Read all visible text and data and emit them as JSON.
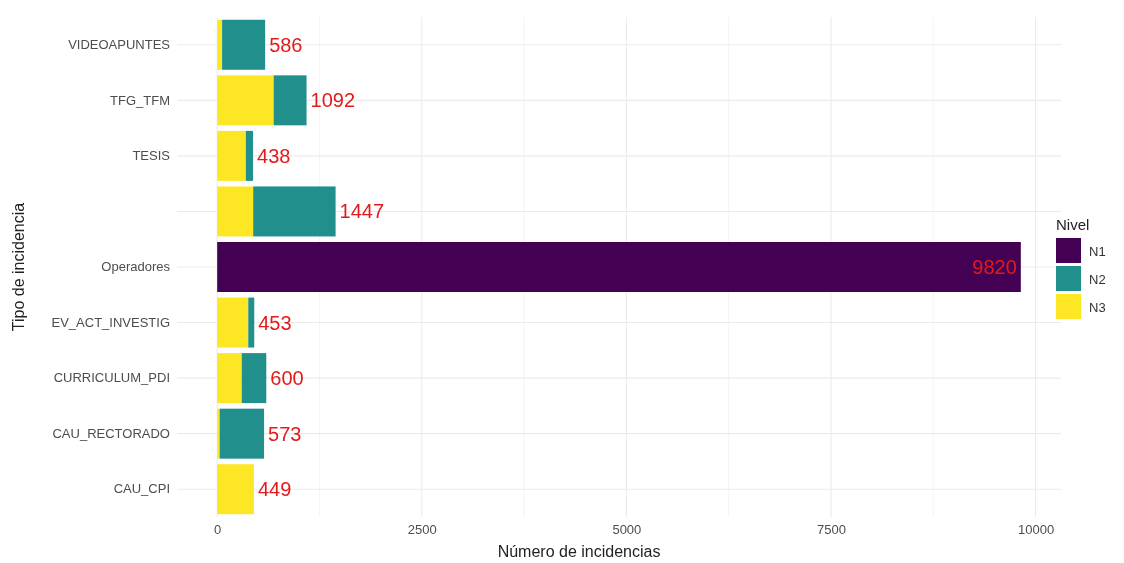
{
  "chart_data": {
    "type": "bar",
    "orientation": "horizontal",
    "stacked": true,
    "xlabel": "Número de incidencias",
    "ylabel": "Tipo de incidencia",
    "legend_title": "Nivel",
    "legend": "right",
    "grid": true,
    "categories": [
      "VIDEOAPUNTES",
      "TFG_TFM",
      "TESIS",
      null,
      "Operadores",
      "EV_ACT_INVESTIG",
      "CURRICULUM_PDI",
      "CAU_RECTORADO",
      "CAU_CPI"
    ],
    "series": [
      {
        "name": "N3",
        "color": "#fde725",
        "values": [
          60,
          690,
          350,
          440,
          null,
          380,
          300,
          30,
          449
        ]
      },
      {
        "name": "N2",
        "color": "#21908c",
        "values": [
          526,
          402,
          88,
          1007,
          null,
          73,
          300,
          543,
          null
        ]
      },
      {
        "name": "N1",
        "color": "#440154",
        "values": [
          null,
          null,
          null,
          null,
          9820,
          null,
          null,
          null,
          null
        ]
      }
    ],
    "totals": [
      "586",
      "1092",
      "438",
      "1447",
      "9820",
      "453",
      "600",
      "573",
      "449"
    ],
    "xlim": [
      -491,
      10311
    ],
    "xticks": [
      0,
      {
        "value": 1250,
        "label": null
      },
      2500,
      {
        "value": 3750,
        "label": null
      },
      5000,
      {
        "value": 6250,
        "label": null
      },
      7500,
      {
        "value": 8750,
        "label": null
      },
      10000
    ]
  }
}
